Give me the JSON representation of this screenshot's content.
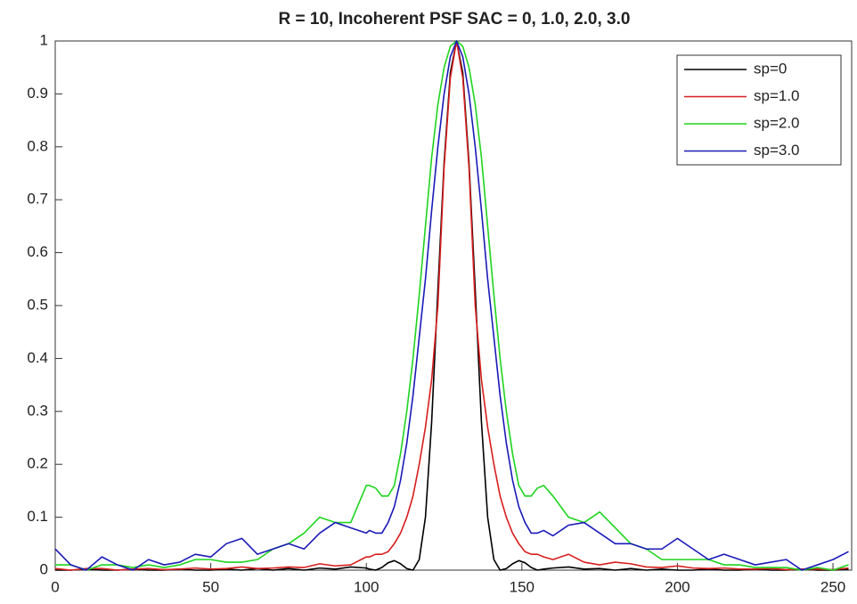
{
  "chart_data": {
    "type": "line",
    "title": "R = 10, Incoherent PSF SAC = 0, 1.0, 2.0, 3.0",
    "x": [
      0,
      5,
      10,
      15,
      20,
      25,
      30,
      35,
      40,
      45,
      50,
      55,
      60,
      65,
      70,
      75,
      80,
      85,
      90,
      95,
      100,
      101,
      103,
      105,
      107,
      109,
      111,
      113,
      115,
      117,
      119,
      121,
      123,
      125,
      127,
      129,
      131,
      133,
      135,
      137,
      139,
      141,
      143,
      145,
      147,
      149,
      151,
      153,
      155,
      157,
      160,
      165,
      170,
      175,
      180,
      185,
      190,
      195,
      200,
      205,
      210,
      215,
      220,
      225,
      230,
      235,
      240,
      245,
      250,
      255
    ],
    "series": [
      {
        "name": "sp=0",
        "color": "#000000",
        "values": [
          0,
          0,
          0.002,
          0,
          0,
          0.002,
          0,
          0,
          0.002,
          0,
          0,
          0.002,
          0,
          0.003,
          0,
          0.003,
          0,
          0.004,
          0.002,
          0.006,
          0.004,
          0.002,
          0,
          0.005,
          0.014,
          0.018,
          0.012,
          0.003,
          0,
          0.02,
          0.1,
          0.28,
          0.53,
          0.77,
          0.94,
          1,
          0.94,
          0.77,
          0.53,
          0.28,
          0.1,
          0.02,
          0,
          0.003,
          0.012,
          0.018,
          0.014,
          0.005,
          0,
          0.002,
          0.004,
          0.006,
          0.002,
          0.003,
          0,
          0.003,
          0,
          0.002,
          0,
          0,
          0.002,
          0,
          0,
          0.002,
          0,
          0,
          0.002,
          0,
          0,
          0.002
        ]
      },
      {
        "name": "sp=1.0",
        "color": "#d81e1e",
        "values": [
          0.003,
          0,
          0.003,
          0.003,
          0,
          0.002,
          0.003,
          0.001,
          0.002,
          0.004,
          0.002,
          0.003,
          0.006,
          0.003,
          0.004,
          0.006,
          0.005,
          0.012,
          0.008,
          0.01,
          0.025,
          0.025,
          0.03,
          0.03,
          0.035,
          0.05,
          0.07,
          0.1,
          0.14,
          0.2,
          0.27,
          0.36,
          0.5,
          0.76,
          0.93,
          1,
          0.93,
          0.76,
          0.5,
          0.36,
          0.27,
          0.2,
          0.14,
          0.1,
          0.07,
          0.05,
          0.035,
          0.03,
          0.03,
          0.025,
          0.02,
          0.03,
          0.015,
          0.01,
          0.015,
          0.012,
          0.006,
          0.005,
          0.008,
          0.004,
          0.003,
          0.004,
          0.002,
          0.002,
          0.003,
          0.001,
          0.002,
          0.002,
          0.001,
          0.004
        ]
      },
      {
        "name": "sp=2.0",
        "color": "#1fd41f",
        "values": [
          0.01,
          0.01,
          0,
          0.01,
          0.01,
          0.005,
          0.01,
          0.005,
          0.01,
          0.02,
          0.02,
          0.015,
          0.015,
          0.02,
          0.04,
          0.05,
          0.07,
          0.1,
          0.09,
          0.09,
          0.16,
          0.16,
          0.155,
          0.14,
          0.14,
          0.16,
          0.22,
          0.3,
          0.4,
          0.52,
          0.65,
          0.78,
          0.88,
          0.95,
          0.99,
          1,
          0.99,
          0.95,
          0.88,
          0.78,
          0.65,
          0.52,
          0.4,
          0.3,
          0.22,
          0.16,
          0.14,
          0.14,
          0.155,
          0.16,
          0.14,
          0.1,
          0.09,
          0.11,
          0.08,
          0.05,
          0.04,
          0.02,
          0.02,
          0.02,
          0.02,
          0.01,
          0.01,
          0.005,
          0.005,
          0.005,
          0,
          0.005,
          0,
          0.01
        ]
      },
      {
        "name": "sp=3.0",
        "color": "#1a1ab8",
        "values": [
          0.04,
          0.01,
          0,
          0.025,
          0.01,
          0,
          0.02,
          0.01,
          0.015,
          0.03,
          0.025,
          0.05,
          0.06,
          0.03,
          0.04,
          0.05,
          0.04,
          0.07,
          0.09,
          0.08,
          0.07,
          0.075,
          0.07,
          0.07,
          0.09,
          0.12,
          0.17,
          0.24,
          0.33,
          0.44,
          0.55,
          0.68,
          0.8,
          0.9,
          0.97,
          1,
          0.97,
          0.9,
          0.8,
          0.68,
          0.55,
          0.44,
          0.33,
          0.24,
          0.17,
          0.12,
          0.09,
          0.07,
          0.07,
          0.075,
          0.065,
          0.085,
          0.09,
          0.07,
          0.05,
          0.05,
          0.04,
          0.04,
          0.06,
          0.04,
          0.02,
          0.03,
          0.02,
          0.01,
          0.015,
          0.02,
          0,
          0.01,
          0.02,
          0.035
        ]
      }
    ],
    "xlim": [
      0,
      256
    ],
    "ylim": [
      0,
      1
    ],
    "xticks": [
      0,
      50,
      100,
      150,
      200,
      250
    ],
    "yticks": [
      0,
      0.1,
      0.2,
      0.3,
      0.4,
      0.5,
      0.6,
      0.7,
      0.8,
      0.9,
      1
    ],
    "grid": false,
    "legend": "top-right"
  }
}
